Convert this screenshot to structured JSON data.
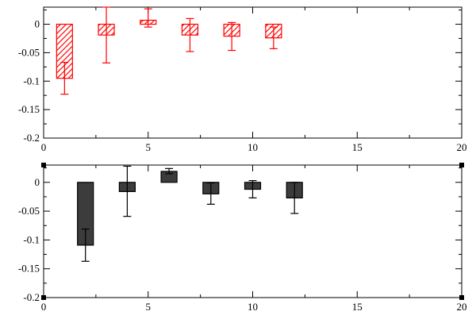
{
  "chart_data": [
    {
      "type": "bar",
      "subtype": "bar-with-error-bars",
      "title": "",
      "xlabel": "",
      "ylabel": "",
      "xlim": [
        0,
        20
      ],
      "ylim": [
        -0.2,
        0.03
      ],
      "xticks": [
        0,
        5,
        10,
        15,
        20
      ],
      "xtick_labels": [
        "0",
        "5",
        "10",
        "15",
        "20"
      ],
      "yticks": [
        0,
        -0.05,
        -0.1,
        -0.15,
        -0.2
      ],
      "ytick_labels": [
        "0",
        "-0.05",
        "-0.1",
        "-0.15",
        "-0.2"
      ],
      "grid": false,
      "colors": {
        "fill": "#ff0000",
        "stroke": "#ff0000",
        "error": "#ff0000",
        "pattern": "hatched"
      },
      "series": [
        {
          "x": [
            1,
            3,
            5,
            7,
            9,
            11
          ],
          "values": [
            -0.095,
            -0.019,
            0.007,
            -0.019,
            -0.021,
            -0.024
          ],
          "err_low": [
            -0.123,
            -0.068,
            -0.005,
            -0.048,
            -0.046,
            -0.043
          ],
          "err_high": [
            -0.067,
            0.03,
            0.027,
            0.01,
            0.003,
            -0.005
          ]
        }
      ]
    },
    {
      "type": "bar",
      "subtype": "bar-with-error-bars",
      "title": "",
      "xlabel": "",
      "ylabel": "",
      "xlim": [
        0,
        20
      ],
      "ylim": [
        -0.2,
        0.03
      ],
      "xticks": [
        0,
        5,
        10,
        15,
        20
      ],
      "xtick_labels": [
        "0",
        "5",
        "10",
        "15",
        "20"
      ],
      "yticks": [
        0,
        -0.05,
        -0.1,
        -0.15,
        -0.2
      ],
      "ytick_labels": [
        "0",
        "-0.05",
        "-0.1",
        "-0.15",
        "-0.2"
      ],
      "grid": false,
      "colors": {
        "fill": "#3c3c3c",
        "stroke": "#000000",
        "error": "#000000",
        "pattern": "solid"
      },
      "series": [
        {
          "x": [
            2,
            4,
            6,
            8,
            10,
            12
          ],
          "values": [
            -0.109,
            -0.016,
            0.019,
            -0.02,
            -0.012,
            -0.027
          ],
          "err_low": [
            -0.137,
            -0.059,
            0.015,
            -0.038,
            -0.027,
            -0.054
          ],
          "err_high": [
            -0.081,
            0.028,
            0.024,
            -0.001,
            0.003,
            0.0
          ]
        }
      ]
    }
  ]
}
